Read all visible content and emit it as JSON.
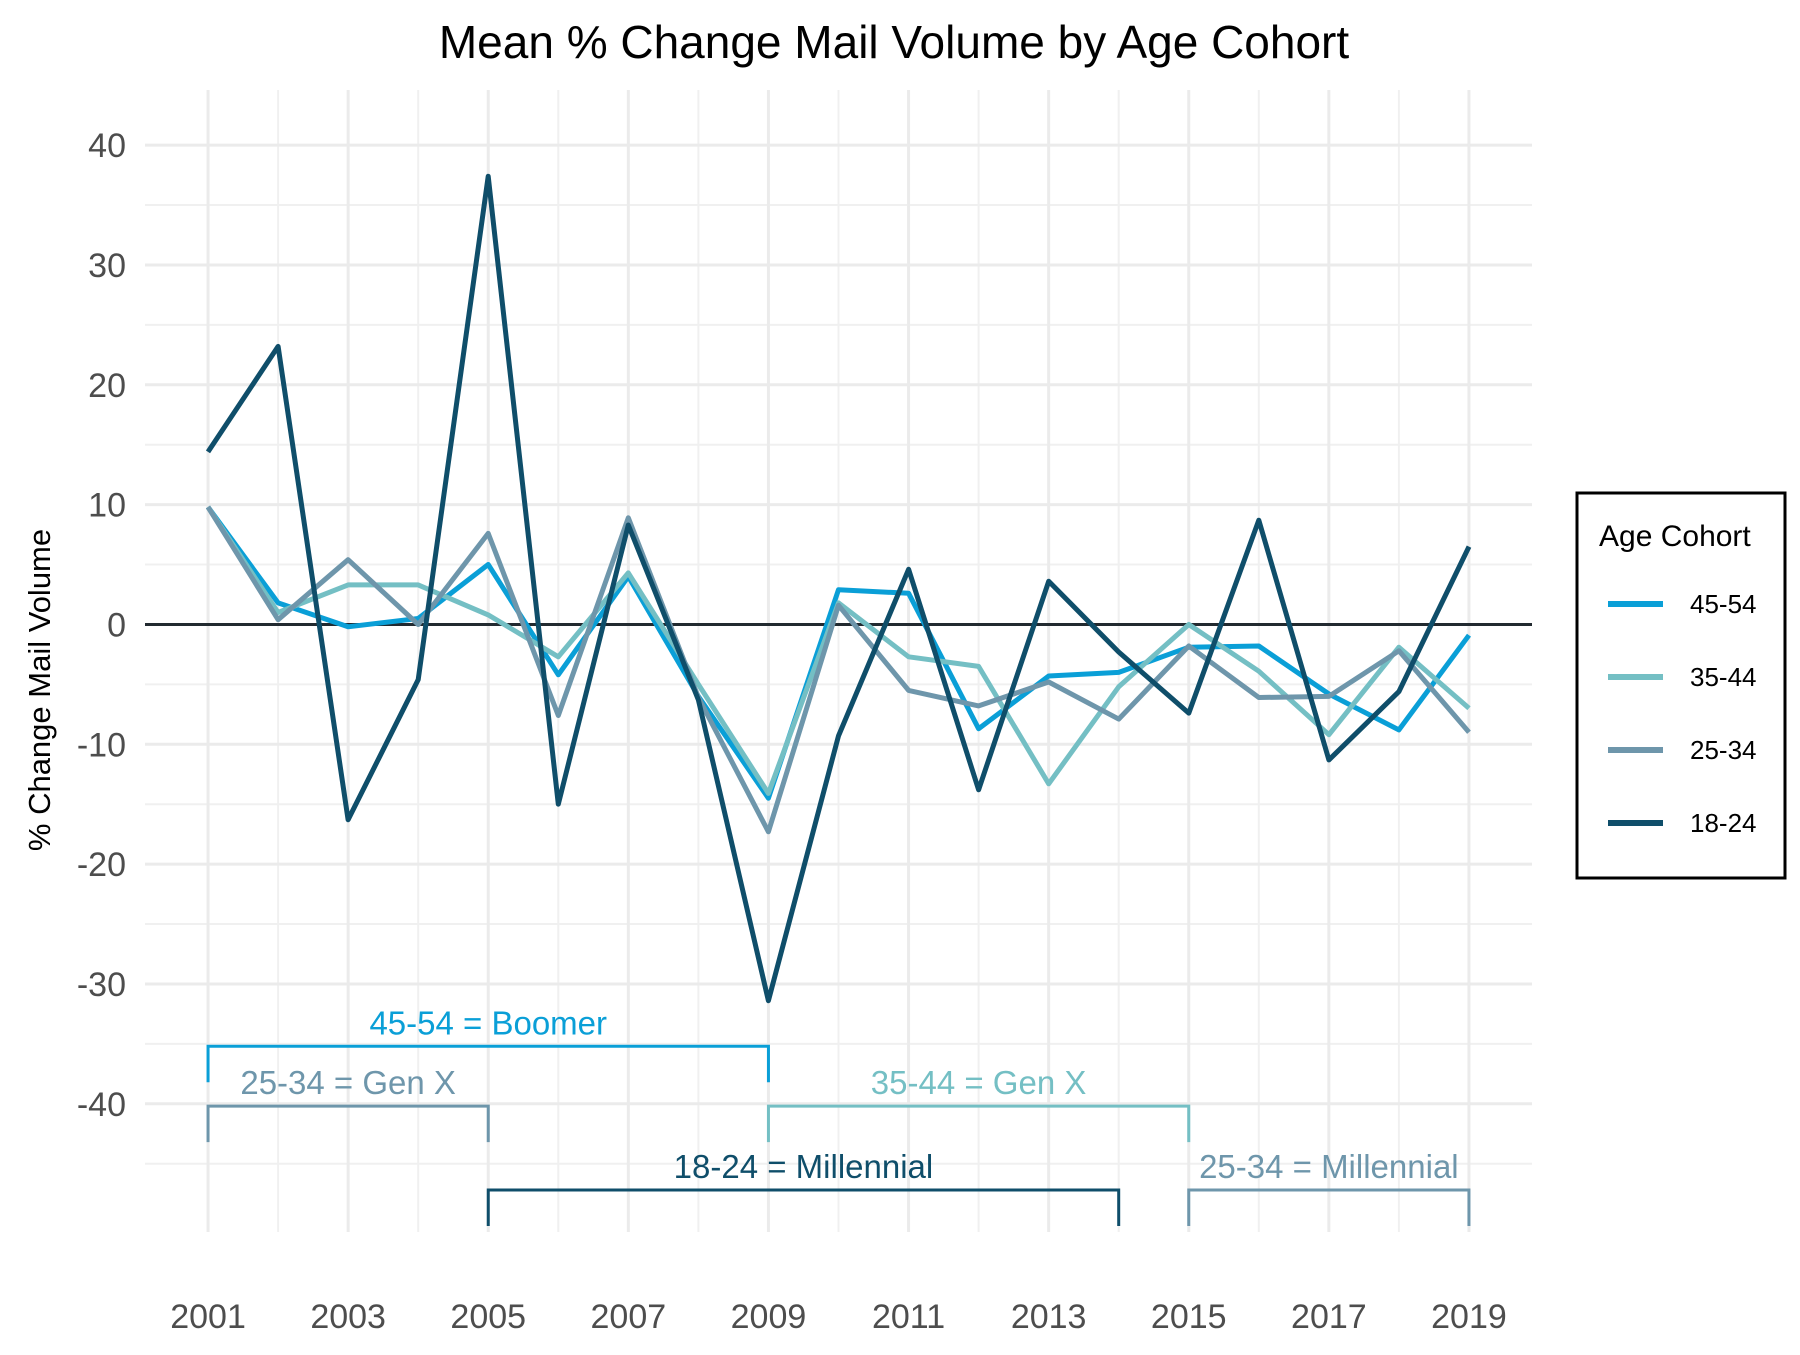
{
  "chart_data": {
    "type": "line",
    "title": "Mean % Change Mail Volume by Age Cohort",
    "xlabel": "",
    "ylabel": "% Change Mail Volume",
    "x": [
      2001,
      2002,
      2003,
      2004,
      2005,
      2006,
      2007,
      2008,
      2009,
      2010,
      2011,
      2012,
      2013,
      2014,
      2015,
      2016,
      2017,
      2018,
      2019
    ],
    "x_ticks": [
      "2001",
      "2003",
      "2005",
      "2007",
      "2009",
      "2011",
      "2013",
      "2015",
      "2017",
      "2019"
    ],
    "y_ticks": [
      "40",
      "30",
      "20",
      "10",
      "0",
      "-10",
      "-20",
      "-30",
      "-40"
    ],
    "xlim": [
      2000.1,
      2019.9
    ],
    "ylim": [
      -50.7,
      44.6
    ],
    "grid": true,
    "reference_line_y": 0,
    "legend": {
      "title": "Age Cohort",
      "position": "right"
    },
    "series": [
      {
        "name": "45-54",
        "color": "#0a9fd7",
        "values": [
          9.8,
          1.8,
          -0.2,
          0.5,
          5.0,
          -4.2,
          4.0,
          -6.0,
          -14.5,
          2.9,
          2.6,
          -8.7,
          -4.3,
          -4.0,
          -1.9,
          -1.8,
          -5.8,
          -8.8,
          -0.9
        ]
      },
      {
        "name": "35-44",
        "color": "#74bfc4",
        "values": [
          9.8,
          1.0,
          3.3,
          3.3,
          0.8,
          -2.7,
          4.3,
          -5.0,
          -14.1,
          1.8,
          -2.7,
          -3.5,
          -13.3,
          -5.2,
          0.0,
          -3.9,
          -9.2,
          -1.9,
          -7.0
        ]
      },
      {
        "name": "25-34",
        "color": "#6e96ab",
        "values": [
          9.8,
          0.4,
          5.4,
          0.0,
          7.6,
          -7.6,
          8.9,
          -6.1,
          -17.3,
          1.6,
          -5.5,
          -6.8,
          -4.8,
          -7.9,
          -1.8,
          -6.1,
          -6.0,
          -2.2,
          -9.0
        ]
      },
      {
        "name": "18-24",
        "color": "#0f4e6a",
        "values": [
          14.4,
          23.2,
          -16.3,
          -4.6,
          37.4,
          -15.0,
          8.3,
          -6.3,
          -31.4,
          -9.3,
          4.6,
          -13.8,
          3.6,
          -2.3,
          -7.4,
          8.7,
          -11.3,
          -5.6,
          6.5
        ]
      }
    ],
    "annotations": [
      {
        "label": "45-54 = Boomer",
        "x_start": 2001,
        "x_end": 2009,
        "y": -35.2,
        "color": "#0a9fd7"
      },
      {
        "label": "25-34 = Gen X",
        "x_start": 2001,
        "x_end": 2005,
        "y": -40.2,
        "color": "#6e96ab"
      },
      {
        "label": "35-44 = Gen X",
        "x_start": 2009,
        "x_end": 2015,
        "y": -40.2,
        "color": "#74bfc4"
      },
      {
        "label": "18-24 = Millennial",
        "x_start": 2005,
        "x_end": 2014,
        "y": -47.2,
        "color": "#0f4e6a"
      },
      {
        "label": "25-34 = Millennial",
        "x_start": 2015,
        "x_end": 2019,
        "y": -47.2,
        "color": "#6e96ab"
      }
    ]
  }
}
